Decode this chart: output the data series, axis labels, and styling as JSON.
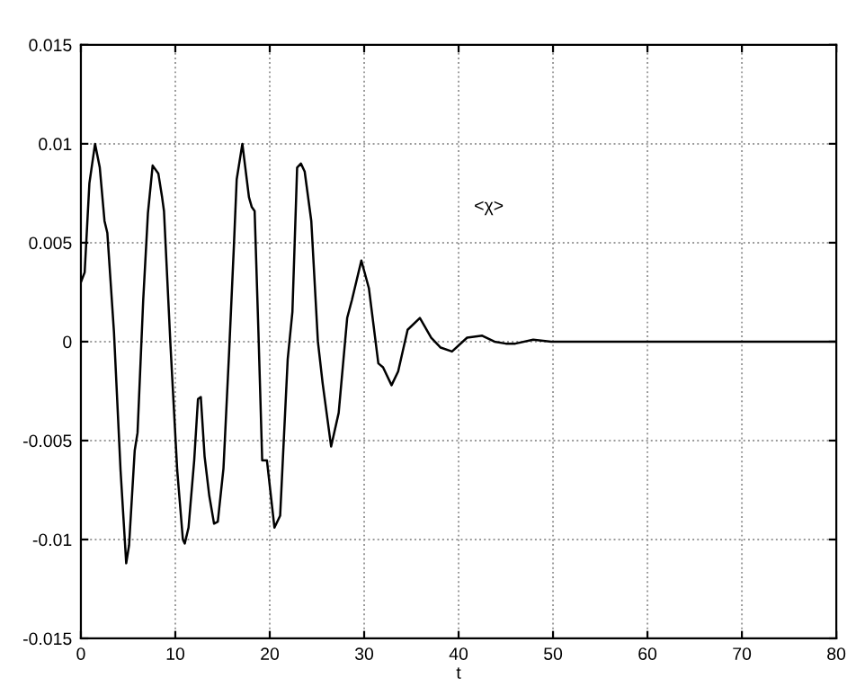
{
  "chart_data": {
    "type": "line",
    "xlabel": "t",
    "annotations": [
      "<χ>"
    ],
    "color": "#000000",
    "grid": true,
    "legend": false,
    "marker": "none",
    "line_style": "solid",
    "xlim": [
      0,
      80
    ],
    "xticks": [
      0,
      10,
      20,
      30,
      40,
      50,
      60,
      70,
      80
    ],
    "ylim": [
      -0.015,
      0.015
    ],
    "yticks": [
      -0.015,
      -0.01,
      -0.005,
      0,
      0.005,
      0.01,
      0.015
    ],
    "x": [
      0,
      0.4,
      0.9,
      1.5,
      2.0,
      2.5,
      2.8,
      3.5,
      4.2,
      4.8,
      5.1,
      5.7,
      6.0,
      6.6,
      7.1,
      7.6,
      8.2,
      8.6,
      8.8,
      9.5,
      10.2,
      10.8,
      11.0,
      11.4,
      12.0,
      12.4,
      12.7,
      13.1,
      13.6,
      14.1,
      14.5,
      15.1,
      15.7,
      16.2,
      16.5,
      17.1,
      17.8,
      18.1,
      18.4,
      18.8,
      19.2,
      19.7,
      20.5,
      21.1,
      21.9,
      22.4,
      22.9,
      23.3,
      23.7,
      24.4,
      25.1,
      25.6,
      26.5,
      27.3,
      28.2,
      28.7,
      29.7,
      30.5,
      31.5,
      32.0,
      32.9,
      33.6,
      34.6,
      35.9,
      37.1,
      38.1,
      39.3,
      40.9,
      42.5,
      43.8,
      45.0,
      46.0,
      47.9,
      49.8,
      55,
      60,
      65,
      70,
      75,
      80
    ],
    "values": [
      0.003,
      0.0035,
      0.008,
      0.01,
      0.0088,
      0.0061,
      0.0055,
      0.0005,
      -0.0065,
      -0.0112,
      -0.0103,
      -0.0055,
      -0.0046,
      0.0021,
      0.0065,
      0.0089,
      0.0085,
      0.0073,
      0.0066,
      -0.0003,
      -0.0065,
      -0.01,
      -0.0102,
      -0.0094,
      -0.006,
      -0.0029,
      -0.0028,
      -0.0058,
      -0.0078,
      -0.0092,
      -0.0091,
      -0.0064,
      -0.0005,
      0.0048,
      0.0082,
      0.01,
      0.0073,
      0.0068,
      0.0066,
      0.0005,
      -0.006,
      -0.006,
      -0.0094,
      -0.0088,
      -0.0009,
      0.0015,
      0.0088,
      0.009,
      0.0086,
      0.0061,
      0,
      -0.0021,
      -0.0053,
      -0.0036,
      0.0012,
      0.0021,
      0.0041,
      0.0027,
      -0.0011,
      -0.0013,
      -0.0022,
      -0.0015,
      0.0006,
      0.0012,
      0.0002,
      -0.0003,
      -0.0005,
      0.0002,
      0.0003,
      0,
      -0.0001,
      -0.0001,
      0.0001,
      0,
      0,
      0,
      0,
      0,
      0,
      0
    ]
  }
}
